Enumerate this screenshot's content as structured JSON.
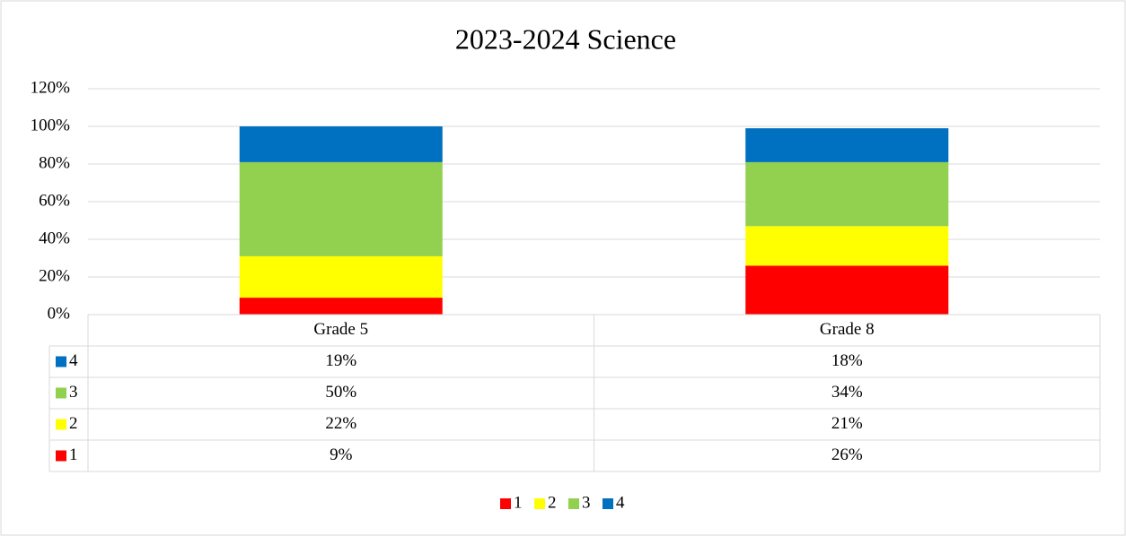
{
  "chart_data": {
    "type": "bar",
    "stacked": true,
    "title": "2023-2024 Science",
    "categories": [
      "Grade 5",
      "Grade 8"
    ],
    "series": [
      {
        "name": "1",
        "color": "#ff0000",
        "values": [
          9,
          26
        ],
        "value_labels": [
          "9%",
          "26%"
        ]
      },
      {
        "name": "2",
        "color": "#ffff00",
        "values": [
          22,
          21
        ],
        "value_labels": [
          "22%",
          "21%"
        ]
      },
      {
        "name": "3",
        "color": "#92d050",
        "values": [
          50,
          34
        ],
        "value_labels": [
          "50%",
          "34%"
        ]
      },
      {
        "name": "4",
        "color": "#0070c0",
        "values": [
          19,
          18
        ],
        "value_labels": [
          "19%",
          "18%"
        ]
      }
    ],
    "ylim": [
      0,
      120
    ],
    "yticks": [
      {
        "value": 0,
        "label": "0%"
      },
      {
        "value": 20,
        "label": "20%"
      },
      {
        "value": 40,
        "label": "40%"
      },
      {
        "value": 60,
        "label": "60%"
      },
      {
        "value": 80,
        "label": "80%"
      },
      {
        "value": 100,
        "label": "100%"
      },
      {
        "value": 120,
        "label": "120%"
      }
    ],
    "grid": true,
    "data_table": true,
    "legend": "bottom"
  }
}
